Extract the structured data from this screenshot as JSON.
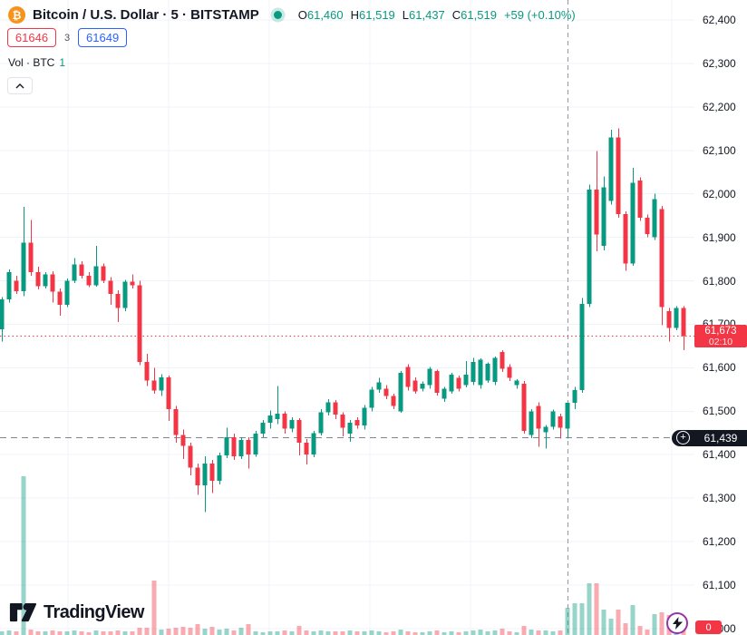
{
  "header": {
    "title": "Bitcoin / U.S. Dollar · 5 · BITSTAMP",
    "ohlc": {
      "o": {
        "label": "O",
        "value": "61,460"
      },
      "h": {
        "label": "H",
        "value": "61,519"
      },
      "l": {
        "label": "L",
        "value": "61,437"
      },
      "c": {
        "label": "C",
        "value": "61,519"
      }
    },
    "change": "+59 (+0.10%)",
    "sell_price": "61646",
    "spread": "3",
    "buy_price": "61649",
    "volume_label": "Vol · BTC",
    "volume_value": "1"
  },
  "price_scale": {
    "last_price_label": {
      "price": "61,673",
      "countdown": "02:10"
    },
    "crosshair_label": {
      "price": "61,439",
      "plus": "+"
    },
    "volume_badge": "0"
  },
  "watermark": {
    "text": "TradingView"
  },
  "colors": {
    "up": "#089981",
    "down": "#f23645",
    "accent_blue": "#2962ff",
    "bitcoin_orange": "#f7931a",
    "dark": "#131722",
    "purple": "#9334a9"
  },
  "chart_data": {
    "type": "candlestick",
    "symbol": "Bitcoin / U.S. Dollar",
    "exchange": "BITSTAMP",
    "interval": "5",
    "volume_unit": "BTC",
    "legend_volume": 1,
    "price_axis_ticks": [
      62400,
      62300,
      62200,
      62100,
      62000,
      61900,
      61800,
      61700,
      61600,
      61500,
      61400,
      61300,
      61200,
      61100,
      61000
    ],
    "y_axis_range": [
      61000,
      62446
    ],
    "last_price": 61673,
    "countdown": "02:10",
    "crosshair": {
      "price": 61439,
      "candle_index": 78
    },
    "hovered_candle": {
      "open": 61460,
      "high": 61519,
      "low": 61437,
      "close": 61519,
      "change": "+59 (+0.10%)"
    },
    "grid": true,
    "candles_format": [
      "open",
      "high",
      "low",
      "close",
      "volume_rel"
    ],
    "candles": [
      [
        61688,
        61762,
        61660,
        61757,
        4
      ],
      [
        61757,
        61826,
        61750,
        61820,
        5
      ],
      [
        61800,
        61812,
        61770,
        61776,
        4
      ],
      [
        61776,
        61970,
        61765,
        61888,
        175
      ],
      [
        61888,
        61940,
        61812,
        61820,
        6
      ],
      [
        61820,
        61832,
        61780,
        61788,
        4
      ],
      [
        61788,
        61820,
        61782,
        61815,
        4
      ],
      [
        61815,
        61822,
        61750,
        61775,
        5
      ],
      [
        61775,
        61782,
        61720,
        61745,
        4
      ],
      [
        61745,
        61805,
        61740,
        61800,
        4
      ],
      [
        61800,
        61852,
        61795,
        61838,
        5
      ],
      [
        61838,
        61845,
        61805,
        61812,
        4
      ],
      [
        61812,
        61820,
        61785,
        61790,
        3
      ],
      [
        61790,
        61880,
        61786,
        61833,
        5
      ],
      [
        61833,
        61840,
        61795,
        61800,
        4
      ],
      [
        61800,
        61808,
        61745,
        61770,
        4
      ],
      [
        61770,
        61778,
        61705,
        61738,
        5
      ],
      [
        61738,
        61802,
        61730,
        61798,
        4
      ],
      [
        61798,
        61815,
        61782,
        61790,
        4
      ],
      [
        61790,
        61800,
        61606,
        61613,
        8
      ],
      [
        61613,
        61632,
        61558,
        61571,
        8
      ],
      [
        61571,
        61600,
        61540,
        61548,
        60
      ],
      [
        61548,
        61585,
        61535,
        61578,
        6
      ],
      [
        61578,
        61582,
        61478,
        61505,
        7
      ],
      [
        61505,
        61512,
        61428,
        61445,
        8
      ],
      [
        61445,
        61458,
        61390,
        61420,
        9
      ],
      [
        61420,
        61428,
        61352,
        61370,
        8
      ],
      [
        61370,
        61380,
        61308,
        61330,
        12
      ],
      [
        61330,
        61396,
        61268,
        61380,
        7
      ],
      [
        61380,
        61388,
        61312,
        61340,
        9
      ],
      [
        61340,
        61405,
        61332,
        61398,
        6
      ],
      [
        61398,
        61462,
        61392,
        61440,
        7
      ],
      [
        61440,
        61448,
        61388,
        61396,
        5
      ],
      [
        61396,
        61440,
        61390,
        61434,
        8
      ],
      [
        61434,
        61440,
        61368,
        61400,
        12
      ],
      [
        61400,
        61455,
        61395,
        61448,
        4
      ],
      [
        61448,
        61480,
        61440,
        61474,
        3
      ],
      [
        61474,
        61502,
        61460,
        61490,
        4
      ],
      [
        61482,
        61558,
        61470,
        61494,
        4
      ],
      [
        61494,
        61500,
        61448,
        61460,
        5
      ],
      [
        61460,
        61486,
        61452,
        61480,
        4
      ],
      [
        61480,
        61484,
        61398,
        61428,
        10
      ],
      [
        61428,
        61436,
        61378,
        61400,
        5
      ],
      [
        61400,
        61455,
        61394,
        61450,
        4
      ],
      [
        61450,
        61505,
        61444,
        61498,
        5
      ],
      [
        61498,
        61528,
        61490,
        61520,
        4
      ],
      [
        61520,
        61526,
        61482,
        61492,
        4
      ],
      [
        61492,
        61498,
        61442,
        61462,
        4
      ],
      [
        61448,
        61480,
        61430,
        61473,
        5
      ],
      [
        61480,
        61486,
        61460,
        61467,
        4
      ],
      [
        61467,
        61514,
        61458,
        61508,
        4
      ],
      [
        61508,
        61556,
        61500,
        61550,
        5
      ],
      [
        61550,
        61577,
        61542,
        61566,
        4
      ],
      [
        61552,
        61560,
        61528,
        61535,
        3
      ],
      [
        61535,
        61540,
        61505,
        61512,
        4
      ],
      [
        61500,
        61592,
        61496,
        61588,
        6
      ],
      [
        61602,
        61608,
        61548,
        61556,
        4
      ],
      [
        61571,
        61578,
        61540,
        61546,
        3
      ],
      [
        61552,
        61568,
        61545,
        61563,
        3
      ],
      [
        61560,
        61602,
        61552,
        61598,
        4
      ],
      [
        61592,
        61596,
        61536,
        61542,
        5
      ],
      [
        61529,
        61556,
        61522,
        61552,
        3
      ],
      [
        61546,
        61588,
        61540,
        61584,
        4
      ],
      [
        61577,
        61582,
        61546,
        61552,
        3
      ],
      [
        61560,
        61615,
        61555,
        61584,
        4
      ],
      [
        61567,
        61623,
        61560,
        61613,
        5
      ],
      [
        61560,
        61622,
        61552,
        61619,
        6
      ],
      [
        61571,
        61612,
        61565,
        61609,
        4
      ],
      [
        61567,
        61626,
        61560,
        61623,
        5
      ],
      [
        61636,
        61640,
        61590,
        61598,
        7
      ],
      [
        61602,
        61608,
        61570,
        61577,
        4
      ],
      [
        61560,
        61574,
        61552,
        61571,
        3
      ],
      [
        61563,
        61570,
        61448,
        61455,
        10
      ],
      [
        61445,
        61505,
        61438,
        61500,
        6
      ],
      [
        61512,
        61520,
        61418,
        61460,
        5
      ],
      [
        61452,
        61468,
        61414,
        61464,
        5
      ],
      [
        61464,
        61504,
        61458,
        61500,
        4
      ],
      [
        61488,
        61494,
        61437,
        61462,
        5
      ],
      [
        61460,
        61519,
        61437,
        61519,
        30
      ],
      [
        61519,
        61556,
        61505,
        61549,
        35
      ],
      [
        61549,
        61760,
        61542,
        61747,
        35
      ],
      [
        61747,
        62021,
        61740,
        62010,
        57
      ],
      [
        62010,
        62098,
        61868,
        61907,
        57
      ],
      [
        61880,
        62040,
        61870,
        62015,
        28
      ],
      [
        61984,
        62148,
        61975,
        62130,
        18
      ],
      [
        62130,
        62151,
        61945,
        61953,
        28
      ],
      [
        61953,
        61960,
        61823,
        61840,
        13
      ],
      [
        61840,
        62060,
        61835,
        62025,
        33
      ],
      [
        62031,
        62038,
        61938,
        61945,
        10
      ],
      [
        61945,
        61952,
        61900,
        61908,
        6
      ],
      [
        61900,
        62000,
        61894,
        61988,
        23
      ],
      [
        61965,
        61972,
        61698,
        61740,
        25
      ],
      [
        61730,
        61738,
        61660,
        61692,
        22
      ],
      [
        61692,
        61742,
        61686,
        61738,
        10
      ],
      [
        61738,
        61742,
        61640,
        61673,
        8
      ]
    ]
  }
}
